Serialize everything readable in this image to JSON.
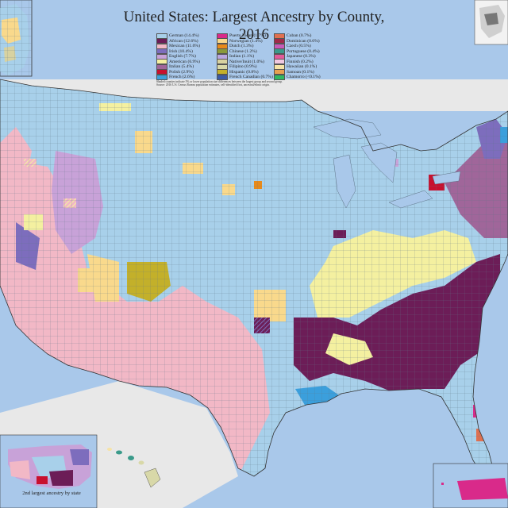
{
  "title": "United States: Largest Ancestry by County, 2016",
  "legend": [
    {
      "label": "German (14.4%)",
      "color": "#a8d0ea"
    },
    {
      "label": "African (12.6%)",
      "color": "#6c1d57"
    },
    {
      "label": "Mexican (11.0%)",
      "color": "#f2b8c6"
    },
    {
      "label": "Irish (10.4%)",
      "color": "#7d6dbd"
    },
    {
      "label": "English (7.7%)",
      "color": "#c8a2d8"
    },
    {
      "label": "American (6.9%)",
      "color": "#f4f0a0"
    },
    {
      "label": "Italian (5.4%)",
      "color": "#a0669a"
    },
    {
      "label": "Polish (2.9%)",
      "color": "#c8102e"
    },
    {
      "label": "French (2.6%)",
      "color": "#3b9fdc"
    },
    {
      "label": "Puerto Rican (1.7%)",
      "color": "#d92a8a"
    },
    {
      "label": "Norwegian (1.4%)",
      "color": "#f9d98c"
    },
    {
      "label": "Dutch (1.3%)",
      "color": "#e88a1a"
    },
    {
      "label": "Chinese (1.2%)",
      "color": "#8a9a3a"
    },
    {
      "label": "Indian (1.1%)",
      "color": "#b9a6e0"
    },
    {
      "label": "Native/Inuit (1.0%)",
      "color": "#d8d2a0"
    },
    {
      "label": "Filipino (0.9%)",
      "color": "#d8d8a8"
    },
    {
      "label": "Hispanic (0.8%)",
      "color": "#c3b02a"
    },
    {
      "label": "French Canadian (0.7%)",
      "color": "#3a5aa8"
    },
    {
      "label": "Cuban (0.7%)",
      "color": "#e07050"
    },
    {
      "label": "Dominican (0.6%)",
      "color": "#a02a4a"
    },
    {
      "label": "Czech (0.5%)",
      "color": "#c85ab8"
    },
    {
      "label": "Portuguese (0.4%)",
      "color": "#3a9a8a"
    },
    {
      "label": "Japanese (0.3%)",
      "color": "#e25a9a"
    },
    {
      "label": "Finnish (0.2%)",
      "color": "#f0c8e0"
    },
    {
      "label": "Hawaiian (0.1%)",
      "color": "#f6e3a6"
    },
    {
      "label": "Samoan (0.1%)",
      "color": "#e8a050"
    },
    {
      "label": "Chamorro (<0.1%)",
      "color": "#30b860"
    }
  ],
  "notes": [
    "Shaded counties indicate 5% or lower population size differences between the largest group and second group.",
    "Source: 2016 U.S. Census Bureau population estimates, self-identified first, ancestral/ethnic origin."
  ],
  "inset_caption": "2nd largest ancestry by state",
  "colors": {
    "water": "#a9c8ea",
    "land_outside": "#e8e8e8",
    "grid_line": "#6e8aa0"
  }
}
